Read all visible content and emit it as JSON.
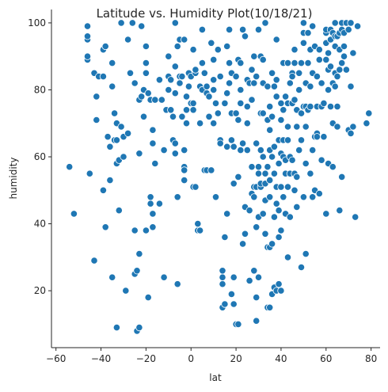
{
  "chart_data": {
    "type": "scatter",
    "title": "Latitude vs. Humidity Plot(10/18/21)",
    "xlabel": "lat",
    "ylabel": "humidity",
    "xlim": [
      -62,
      84
    ],
    "ylim": [
      3,
      104
    ],
    "xticks": [
      -60,
      -40,
      -20,
      0,
      20,
      40,
      60,
      80
    ],
    "yticks": [
      20,
      40,
      60,
      80,
      100
    ],
    "grid": false,
    "marker_color": "#1f77b4",
    "marker_edge": "#ffffff",
    "points": [
      [
        -54,
        57
      ],
      [
        -52,
        43
      ],
      [
        -46,
        89
      ],
      [
        -46,
        90
      ],
      [
        -46,
        95
      ],
      [
        -46,
        96
      ],
      [
        -46,
        99
      ],
      [
        -45,
        55
      ],
      [
        -43,
        29
      ],
      [
        -43,
        85
      ],
      [
        -42,
        78
      ],
      [
        -42,
        71
      ],
      [
        -41,
        84
      ],
      [
        -39,
        50
      ],
      [
        -39,
        84
      ],
      [
        -39,
        92
      ],
      [
        -38,
        39
      ],
      [
        -38,
        93
      ],
      [
        -37,
        66
      ],
      [
        -36,
        63
      ],
      [
        -36,
        53
      ],
      [
        -35,
        88
      ],
      [
        -35,
        24
      ],
      [
        -35,
        81
      ],
      [
        -34,
        73
      ],
      [
        -34,
        65
      ],
      [
        -33,
        58
      ],
      [
        -33,
        70
      ],
      [
        -33,
        65
      ],
      [
        -33,
        9
      ],
      [
        -32,
        59
      ],
      [
        -32,
        44
      ],
      [
        -31,
        69
      ],
      [
        -31,
        100
      ],
      [
        -30,
        66
      ],
      [
        -30,
        60
      ],
      [
        -29,
        20
      ],
      [
        -28,
        67
      ],
      [
        -28,
        95
      ],
      [
        -27,
        85
      ],
      [
        -26,
        100
      ],
      [
        -25,
        38
      ],
      [
        -25,
        25
      ],
      [
        -25,
        82
      ],
      [
        -24,
        8
      ],
      [
        -24,
        26
      ],
      [
        -23,
        9
      ],
      [
        -23,
        31
      ],
      [
        -23,
        61
      ],
      [
        -23,
        77
      ],
      [
        -22,
        99
      ],
      [
        -22,
        78
      ],
      [
        -21,
        72
      ],
      [
        -21,
        80
      ],
      [
        -20,
        38
      ],
      [
        -20,
        93
      ],
      [
        -20,
        88
      ],
      [
        -20,
        85
      ],
      [
        -19,
        18
      ],
      [
        -19,
        79
      ],
      [
        -18,
        77
      ],
      [
        -18,
        46
      ],
      [
        -18,
        48
      ],
      [
        -17,
        64
      ],
      [
        -17,
        43
      ],
      [
        -17,
        39
      ],
      [
        -17,
        68
      ],
      [
        -16,
        58
      ],
      [
        -16,
        77
      ],
      [
        -14,
        46
      ],
      [
        -14,
        83
      ],
      [
        -13,
        77
      ],
      [
        -12,
        62
      ],
      [
        -12,
        24
      ],
      [
        -11,
        74
      ],
      [
        -10,
        84
      ],
      [
        -10,
        90
      ],
      [
        -10,
        80
      ],
      [
        -9,
        83
      ],
      [
        -9,
        74
      ],
      [
        -8,
        65
      ],
      [
        -8,
        72
      ],
      [
        -7,
        64
      ],
      [
        -7,
        87
      ],
      [
        -7,
        61
      ],
      [
        -7,
        79
      ],
      [
        -7,
        100
      ],
      [
        -6,
        93
      ],
      [
        -6,
        48
      ],
      [
        -6,
        22
      ],
      [
        -5,
        84
      ],
      [
        -5,
        82
      ],
      [
        -5,
        95
      ],
      [
        -4,
        84
      ],
      [
        -4,
        72
      ],
      [
        -3,
        57
      ],
      [
        -3,
        53
      ],
      [
        -3,
        56
      ],
      [
        -3,
        62
      ],
      [
        -3,
        95
      ],
      [
        -2,
        70
      ],
      [
        -2,
        78
      ],
      [
        -2,
        74
      ],
      [
        -1,
        85
      ],
      [
        -1,
        81
      ],
      [
        0,
        84
      ],
      [
        0,
        76
      ],
      [
        1,
        51
      ],
      [
        1,
        76
      ],
      [
        1,
        74
      ],
      [
        1,
        92
      ],
      [
        2,
        51
      ],
      [
        2,
        85
      ],
      [
        2,
        86
      ],
      [
        3,
        38
      ],
      [
        3,
        40
      ],
      [
        4,
        81
      ],
      [
        4,
        38
      ],
      [
        4,
        70
      ],
      [
        5,
        98
      ],
      [
        5,
        80
      ],
      [
        5,
        88
      ],
      [
        6,
        85
      ],
      [
        6,
        56
      ],
      [
        7,
        56
      ],
      [
        7,
        79
      ],
      [
        7,
        81
      ],
      [
        8,
        78
      ],
      [
        8,
        72
      ],
      [
        9,
        56
      ],
      [
        9,
        94
      ],
      [
        10,
        70
      ],
      [
        10,
        80
      ],
      [
        10,
        83
      ],
      [
        10,
        89
      ],
      [
        11,
        76
      ],
      [
        11,
        48
      ],
      [
        12,
        73
      ],
      [
        12,
        92
      ],
      [
        13,
        84
      ],
      [
        13,
        65
      ],
      [
        13,
        64
      ],
      [
        14,
        24
      ],
      [
        14,
        22
      ],
      [
        14,
        26
      ],
      [
        14,
        15
      ],
      [
        15,
        16
      ],
      [
        15,
        36
      ],
      [
        15,
        76
      ],
      [
        16,
        43
      ],
      [
        16,
        63
      ],
      [
        16,
        79
      ],
      [
        16,
        93
      ],
      [
        17,
        98
      ],
      [
        17,
        88
      ],
      [
        17,
        82
      ],
      [
        18,
        65
      ],
      [
        18,
        85
      ],
      [
        18,
        19
      ],
      [
        18,
        73
      ],
      [
        19,
        52
      ],
      [
        19,
        63
      ],
      [
        19,
        16
      ],
      [
        19,
        24
      ],
      [
        20,
        10
      ],
      [
        20,
        73
      ],
      [
        20,
        84
      ],
      [
        21,
        10
      ],
      [
        21,
        71
      ],
      [
        21,
        89
      ],
      [
        21,
        54
      ],
      [
        22,
        80
      ],
      [
        22,
        88
      ],
      [
        22,
        62
      ],
      [
        22,
        76
      ],
      [
        23,
        34
      ],
      [
        23,
        64
      ],
      [
        23,
        98
      ],
      [
        24,
        96
      ],
      [
        24,
        45
      ],
      [
        24,
        37
      ],
      [
        25,
        83
      ],
      [
        25,
        75
      ],
      [
        25,
        62
      ],
      [
        25,
        70
      ],
      [
        26,
        44
      ],
      [
        26,
        82
      ],
      [
        26,
        23
      ],
      [
        27,
        86
      ],
      [
        27,
        57
      ],
      [
        27,
        49
      ],
      [
        27,
        77
      ],
      [
        28,
        51
      ],
      [
        28,
        90
      ],
      [
        28,
        26
      ],
      [
        28,
        48
      ],
      [
        28,
        82
      ],
      [
        29,
        51
      ],
      [
        29,
        39
      ],
      [
        29,
        18
      ],
      [
        29,
        11
      ],
      [
        29,
        84
      ],
      [
        29,
        64
      ],
      [
        30,
        98
      ],
      [
        30,
        55
      ],
      [
        30,
        42
      ],
      [
        30,
        57
      ],
      [
        30,
        24
      ],
      [
        31,
        90
      ],
      [
        31,
        73
      ],
      [
        31,
        62
      ],
      [
        31,
        51
      ],
      [
        31,
        52
      ],
      [
        32,
        89
      ],
      [
        32,
        73
      ],
      [
        32,
        82
      ],
      [
        32,
        60
      ],
      [
        32,
        43
      ],
      [
        33,
        100
      ],
      [
        33,
        47
      ],
      [
        33,
        52
      ],
      [
        33,
        55
      ],
      [
        33,
        37
      ],
      [
        34,
        15
      ],
      [
        34,
        33
      ],
      [
        34,
        71
      ],
      [
        34,
        81
      ],
      [
        34,
        57
      ],
      [
        35,
        33
      ],
      [
        35,
        75
      ],
      [
        35,
        15
      ],
      [
        35,
        53
      ],
      [
        35,
        62
      ],
      [
        35,
        48
      ],
      [
        35,
        68
      ],
      [
        36,
        85
      ],
      [
        36,
        34
      ],
      [
        36,
        19
      ],
      [
        36,
        72
      ],
      [
        36,
        60
      ],
      [
        37,
        21
      ],
      [
        37,
        42
      ],
      [
        37,
        81
      ],
      [
        37,
        55
      ],
      [
        37,
        63
      ],
      [
        38,
        20
      ],
      [
        38,
        83
      ],
      [
        38,
        95
      ],
      [
        38,
        46
      ],
      [
        38,
        51
      ],
      [
        38,
        78
      ],
      [
        39,
        44
      ],
      [
        39,
        65
      ],
      [
        39,
        22
      ],
      [
        39,
        36
      ],
      [
        39,
        58
      ],
      [
        40,
        71
      ],
      [
        40,
        76
      ],
      [
        40,
        61
      ],
      [
        40,
        20
      ],
      [
        40,
        38
      ],
      [
        40,
        51
      ],
      [
        41,
        88
      ],
      [
        41,
        74
      ],
      [
        41,
        48
      ],
      [
        41,
        60
      ],
      [
        41,
        65
      ],
      [
        42,
        59
      ],
      [
        42,
        43
      ],
      [
        42,
        55
      ],
      [
        42,
        78
      ],
      [
        43,
        69
      ],
      [
        43,
        88
      ],
      [
        43,
        76
      ],
      [
        43,
        30
      ],
      [
        43,
        65
      ],
      [
        43,
        51
      ],
      [
        44,
        82
      ],
      [
        44,
        60
      ],
      [
        44,
        42
      ],
      [
        44,
        55
      ],
      [
        45,
        85
      ],
      [
        45,
        59
      ],
      [
        45,
        84
      ],
      [
        45,
        76
      ],
      [
        46,
        88
      ],
      [
        46,
        92
      ],
      [
        46,
        77
      ],
      [
        46,
        55
      ],
      [
        46,
        50
      ],
      [
        47,
        69
      ],
      [
        47,
        45
      ],
      [
        47,
        54
      ],
      [
        47,
        74
      ],
      [
        48,
        85
      ],
      [
        48,
        62
      ],
      [
        48,
        80
      ],
      [
        49,
        27
      ],
      [
        49,
        88
      ],
      [
        49,
        73
      ],
      [
        49,
        65
      ],
      [
        50,
        94
      ],
      [
        50,
        75
      ],
      [
        50,
        97
      ],
      [
        50,
        48
      ],
      [
        50,
        100
      ],
      [
        51,
        82
      ],
      [
        51,
        31
      ],
      [
        51,
        75
      ],
      [
        51,
        69
      ],
      [
        51,
        58
      ],
      [
        52,
        97
      ],
      [
        52,
        88
      ],
      [
        52,
        74
      ],
      [
        53,
        92
      ],
      [
        53,
        81
      ],
      [
        53,
        55
      ],
      [
        53,
        75
      ],
      [
        54,
        62
      ],
      [
        54,
        99
      ],
      [
        54,
        48
      ],
      [
        54,
        85
      ],
      [
        55,
        66
      ],
      [
        55,
        50
      ],
      [
        55,
        93
      ],
      [
        56,
        75
      ],
      [
        56,
        67
      ],
      [
        56,
        66
      ],
      [
        56,
        84
      ],
      [
        57,
        89
      ],
      [
        57,
        49
      ],
      [
        57,
        92
      ],
      [
        58,
        75
      ],
      [
        58,
        59
      ],
      [
        58,
        82
      ],
      [
        59,
        66
      ],
      [
        59,
        76
      ],
      [
        60,
        97
      ],
      [
        60,
        89
      ],
      [
        60,
        94
      ],
      [
        60,
        43
      ],
      [
        60,
        98
      ],
      [
        61,
        80
      ],
      [
        61,
        91
      ],
      [
        61,
        86
      ],
      [
        61,
        58
      ],
      [
        62,
        95
      ],
      [
        62,
        75
      ],
      [
        62,
        98
      ],
      [
        62,
        87
      ],
      [
        63,
        97
      ],
      [
        63,
        70
      ],
      [
        63,
        82
      ],
      [
        63,
        57
      ],
      [
        64,
        96
      ],
      [
        64,
        85
      ],
      [
        64,
        81
      ],
      [
        64,
        100
      ],
      [
        64,
        93
      ],
      [
        65,
        96
      ],
      [
        65,
        84
      ],
      [
        65,
        75
      ],
      [
        65,
        69
      ],
      [
        66,
        97
      ],
      [
        66,
        92
      ],
      [
        66,
        86
      ],
      [
        66,
        44
      ],
      [
        67,
        98
      ],
      [
        67,
        100
      ],
      [
        67,
        88
      ],
      [
        67,
        54
      ],
      [
        68,
        93
      ],
      [
        68,
        97
      ],
      [
        68,
        90
      ],
      [
        69,
        100
      ],
      [
        69,
        86
      ],
      [
        70,
        98
      ],
      [
        70,
        68
      ],
      [
        71,
        81
      ],
      [
        71,
        100
      ],
      [
        71,
        67
      ],
      [
        72,
        91
      ],
      [
        72,
        69
      ],
      [
        73,
        42
      ],
      [
        74,
        99
      ],
      [
        78,
        70
      ],
      [
        79,
        73
      ]
    ]
  }
}
